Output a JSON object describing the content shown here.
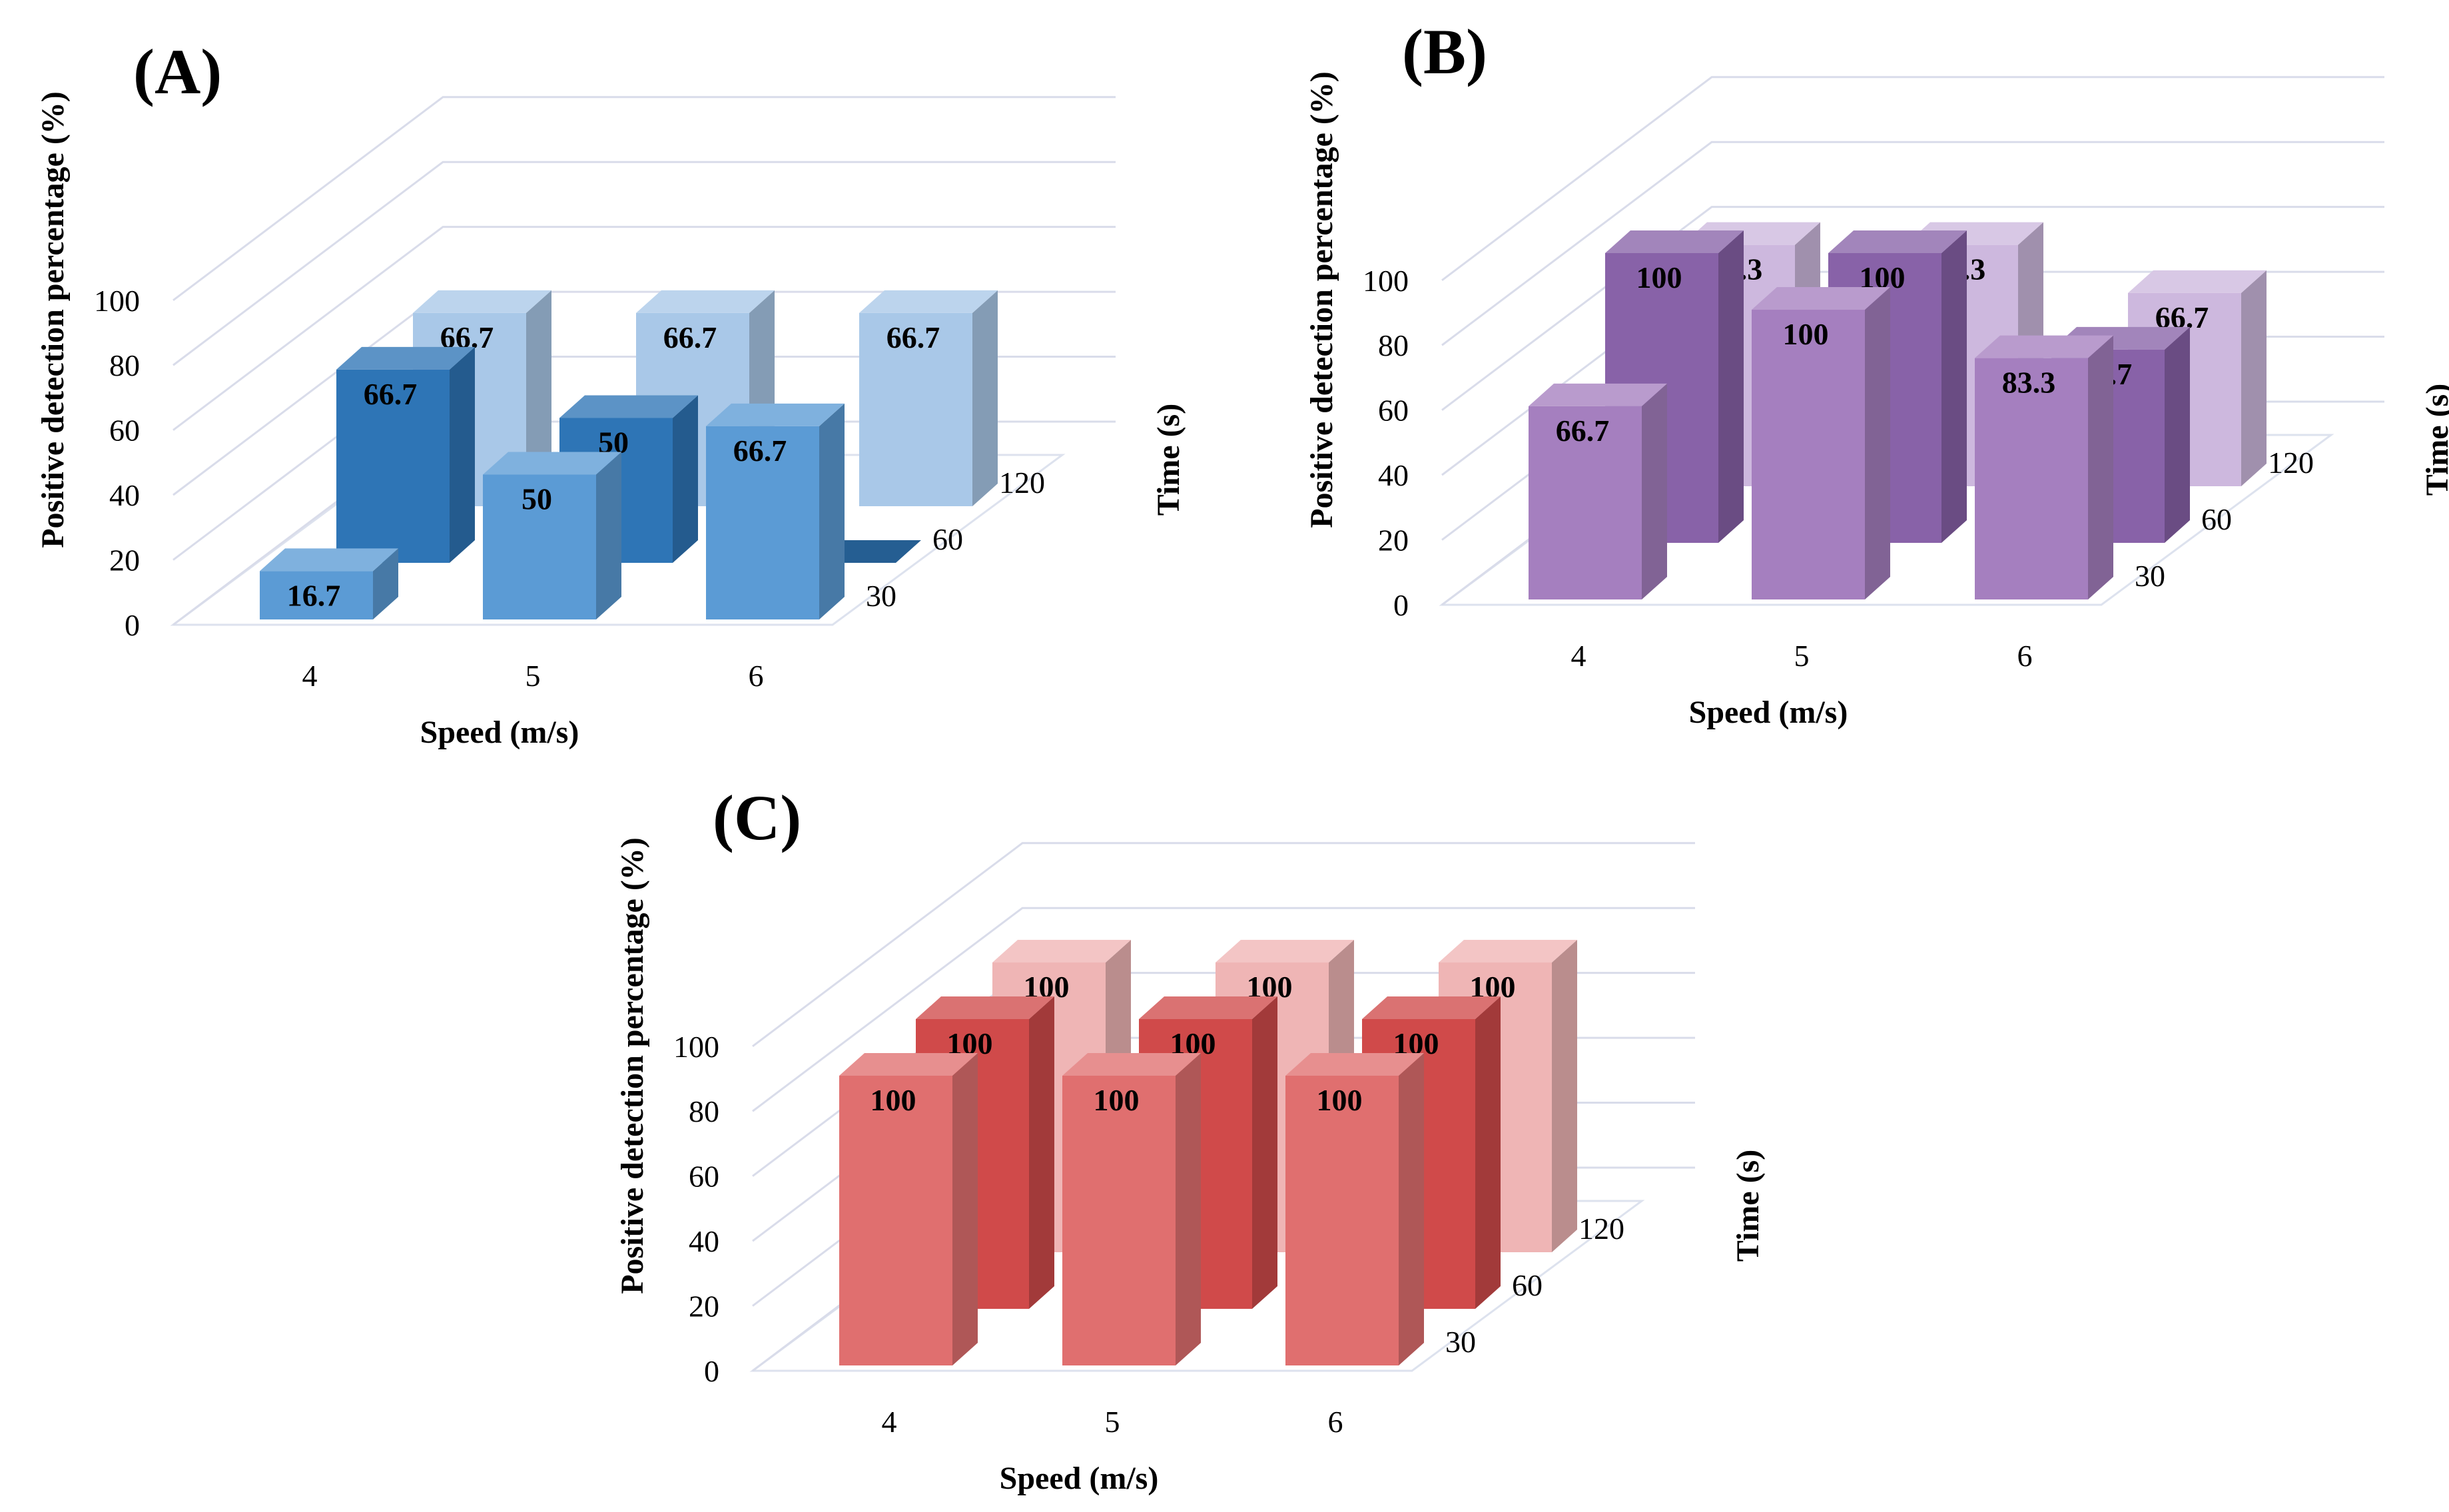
{
  "chart_data": [
    {
      "type": "bar",
      "panel": "(A)",
      "categories": [
        "4",
        "5",
        "6"
      ],
      "series": [
        {
          "name": "30",
          "values": [
            16.7,
            50,
            66.7
          ]
        },
        {
          "name": "60",
          "values": [
            66.7,
            50,
            0
          ]
        },
        {
          "name": "120",
          "values": [
            66.7,
            66.7,
            66.7
          ]
        }
      ],
      "xlabel": "Speed (m/s)",
      "ylabel": "Positive detection percentage (%)",
      "zlabel": "Time (s)",
      "yticks": [
        "0",
        "20",
        "40",
        "60",
        "80",
        "100"
      ],
      "ylim": [
        0,
        100
      ],
      "colors": {
        "30": "#5b9bd5",
        "60": "#2e75b6",
        "120": "#a9c8e8"
      }
    },
    {
      "type": "bar",
      "panel": "(B)",
      "categories": [
        "4",
        "5",
        "6"
      ],
      "series": [
        {
          "name": "30",
          "values": [
            66.7,
            100,
            83.3
          ]
        },
        {
          "name": "60",
          "values": [
            100,
            100,
            66.7
          ]
        },
        {
          "name": "120",
          "values": [
            83.3,
            83.3,
            66.7
          ]
        }
      ],
      "xlabel": "Speed (m/s)",
      "ylabel": "Positive detection percentage (%)",
      "zlabel": "Time (s)",
      "yticks": [
        "0",
        "20",
        "40",
        "60",
        "80",
        "100"
      ],
      "ylim": [
        0,
        100
      ],
      "colors": {
        "30": "#a57fbf",
        "60": "#8862a8",
        "120": "#cdb8de"
      }
    },
    {
      "type": "bar",
      "panel": "(C)",
      "categories": [
        "4",
        "5",
        "6"
      ],
      "series": [
        {
          "name": "30",
          "values": [
            100,
            100,
            100
          ]
        },
        {
          "name": "60",
          "values": [
            100,
            100,
            100
          ]
        },
        {
          "name": "120",
          "values": [
            100,
            100,
            100
          ]
        }
      ],
      "xlabel": "Speed (m/s)",
      "ylabel": "Positive detection percentage (%)",
      "zlabel": "Time (s)",
      "yticks": [
        "0",
        "20",
        "40",
        "60",
        "80",
        "100"
      ],
      "ylim": [
        0,
        100
      ],
      "colors": {
        "30": "#e06f6f",
        "60": "#d04a4a",
        "120": "#efb5b5"
      }
    }
  ]
}
